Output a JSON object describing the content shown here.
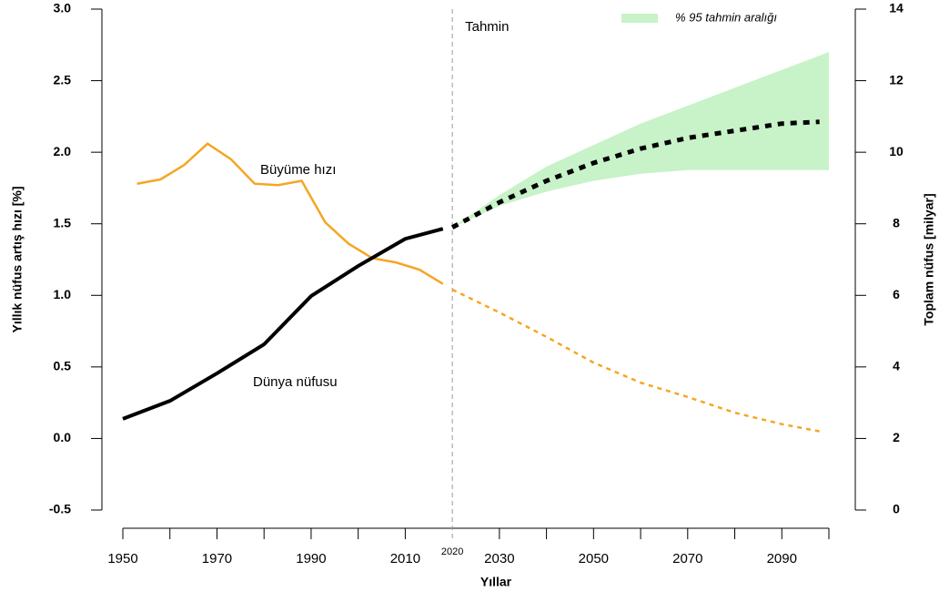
{
  "chart_data": {
    "type": "line",
    "xlabel": "Yıllar",
    "ylabel": "Yıllık nüfus artış hızı [%]",
    "y2label": "Toplam nüfus [milyar]",
    "xlim": [
      1950,
      2100
    ],
    "xticks": [
      1950,
      1970,
      1990,
      2010,
      2030,
      2050,
      2070,
      2090
    ],
    "xticks_minor": [
      1960,
      1980,
      2000,
      2040,
      2060,
      2080,
      2100
    ],
    "forecast_start": 2020,
    "forecast_label": "Tahmin",
    "ylim": [
      -0.5,
      3.0
    ],
    "yticks": [
      -0.5,
      {
        "value": 0,
        "label": "0.0"
      },
      0.5,
      {
        "value": 1,
        "label": "1.0"
      },
      1.5,
      {
        "value": 2,
        "label": "2.0"
      },
      2.5,
      {
        "value": 3,
        "label": "3.0"
      }
    ],
    "y2lim": [
      0,
      14
    ],
    "y2ticks": [
      0,
      2,
      4,
      6,
      8,
      10,
      12,
      14
    ],
    "legend": "top-right",
    "annotations": [
      "Büyüme hızı",
      "Dünya nüfusu"
    ],
    "band": {
      "name": "% 95 tahmin aralığı",
      "color": "#c8f2c8",
      "axis": "y2",
      "x": [
        2020,
        2030,
        2040,
        2050,
        2060,
        2070,
        2080,
        2090,
        2100
      ],
      "lower": [
        7.9,
        8.5,
        8.9,
        9.2,
        9.4,
        9.5,
        9.5,
        9.5,
        9.5
      ],
      "upper": [
        7.9,
        8.8,
        9.6,
        10.2,
        10.8,
        11.3,
        11.8,
        12.3,
        12.8
      ]
    },
    "series": [
      {
        "color": "#f5a623",
        "axis": "y",
        "dashed": false,
        "x": [
          1953,
          1958,
          1963,
          1968,
          1973,
          1978,
          1983,
          1988,
          1993,
          1998,
          2003,
          2008,
          2013,
          2018
        ],
        "values": [
          1.78,
          1.81,
          1.91,
          2.06,
          1.95,
          1.78,
          1.77,
          1.8,
          1.51,
          1.36,
          1.26,
          1.23,
          1.18,
          1.08
        ]
      },
      {
        "color": "#f5a623",
        "axis": "y",
        "dashed": true,
        "x": [
          2020,
          2030,
          2040,
          2050,
          2060,
          2070,
          2080,
          2090,
          2098
        ],
        "values": [
          1.04,
          0.88,
          0.71,
          0.53,
          0.39,
          0.29,
          0.18,
          0.1,
          0.05
        ]
      },
      {
        "color": "#000000",
        "axis": "y2",
        "dashed": false,
        "x": [
          1950,
          1960,
          1970,
          1980,
          1990,
          2000,
          2010,
          2018
        ],
        "values": [
          2.55,
          3.05,
          3.82,
          4.63,
          5.98,
          6.82,
          7.58,
          7.86
        ]
      },
      {
        "color": "#000000",
        "axis": "y2",
        "dashed": true,
        "x": [
          2020,
          2030,
          2040,
          2050,
          2060,
          2070,
          2080,
          2090,
          2098
        ],
        "values": [
          7.9,
          8.6,
          9.2,
          9.7,
          10.1,
          10.4,
          10.6,
          10.8,
          10.85
        ]
      }
    ]
  }
}
